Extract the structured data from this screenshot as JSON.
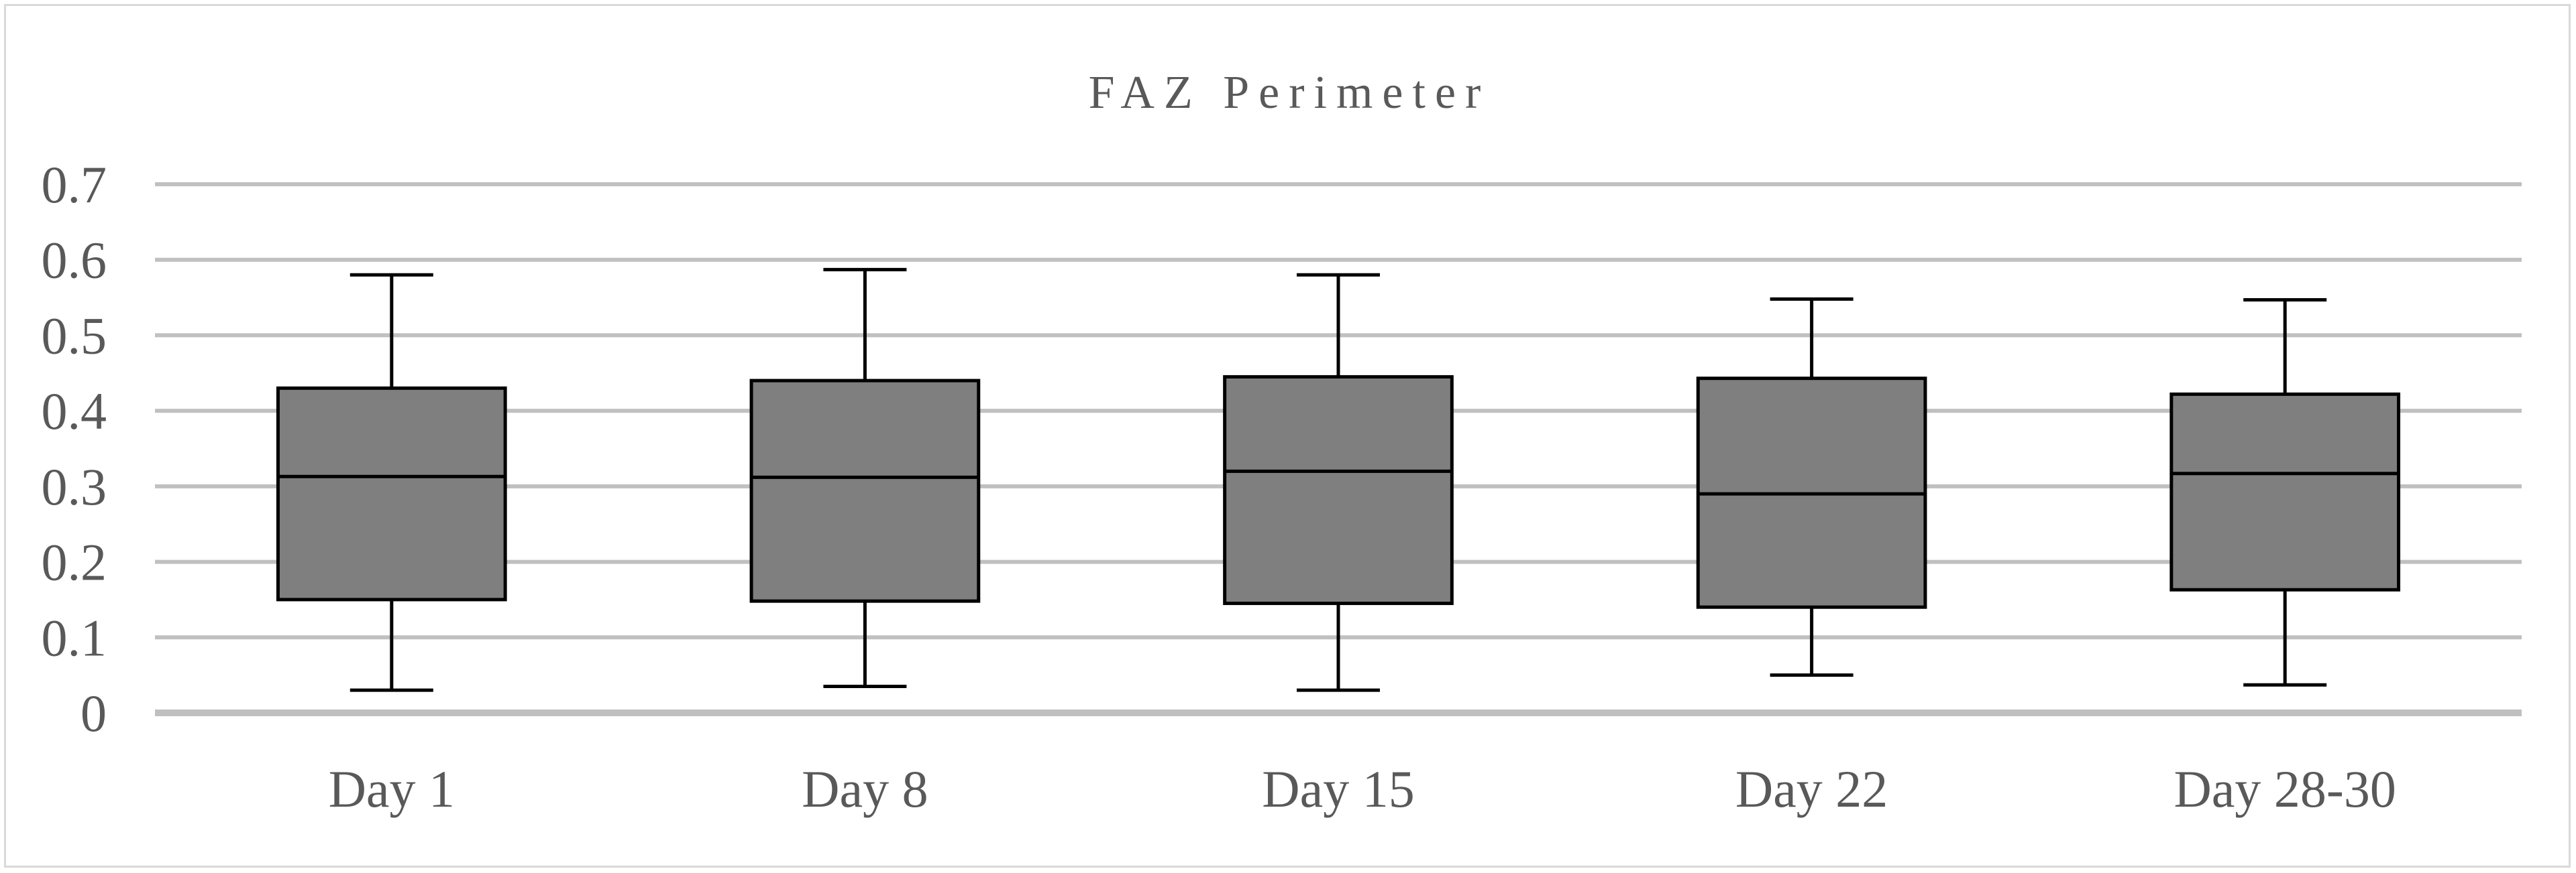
{
  "chart_data": {
    "type": "box",
    "title": "FAZ Perimeter",
    "xlabel": "",
    "ylabel": "",
    "ylim": [
      0,
      0.7
    ],
    "yticks": [
      "0",
      "0.1",
      "0.2",
      "0.3",
      "0.4",
      "0.5",
      "0.6",
      "0.7"
    ],
    "grid": true,
    "legend": "none",
    "box_color": "#7f7f7f",
    "line_color": "#000000",
    "grid_color": "#c0c0c0",
    "categories": [
      "Day 1",
      "Day 8",
      "Day 15",
      "Day 22",
      "Day 28-30"
    ],
    "boxes": [
      {
        "min": 0.03,
        "q1": 0.15,
        "median": 0.313,
        "q3": 0.43,
        "max": 0.58
      },
      {
        "min": 0.035,
        "q1": 0.148,
        "median": 0.312,
        "q3": 0.44,
        "max": 0.587
      },
      {
        "min": 0.03,
        "q1": 0.145,
        "median": 0.32,
        "q3": 0.445,
        "max": 0.58
      },
      {
        "min": 0.05,
        "q1": 0.14,
        "median": 0.29,
        "q3": 0.443,
        "max": 0.548
      },
      {
        "min": 0.037,
        "q1": 0.163,
        "median": 0.317,
        "q3": 0.422,
        "max": 0.547
      }
    ]
  }
}
